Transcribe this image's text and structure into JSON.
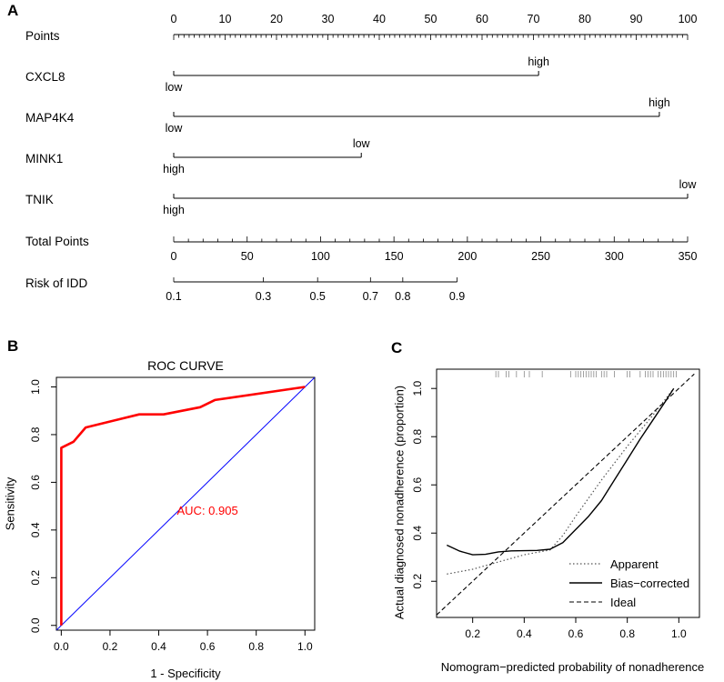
{
  "panel_labels": {
    "a": "A",
    "b": "B",
    "c": "C"
  },
  "chart_data": [
    {
      "type": "nomogram",
      "points_axis": {
        "label": "Points",
        "ticks": [
          0,
          10,
          20,
          30,
          40,
          50,
          60,
          70,
          80,
          90,
          100
        ]
      },
      "variables": [
        {
          "name": "CXCL8",
          "start_points": 0,
          "end_points": 71,
          "start_label": "low",
          "end_label": "high"
        },
        {
          "name": "MAP4K4",
          "start_points": 0,
          "end_points": 94.5,
          "start_label": "low",
          "end_label": "high"
        },
        {
          "name": "MINK1",
          "start_points": 0,
          "end_points": 36.5,
          "start_label": "high",
          "end_label": "low"
        },
        {
          "name": "TNIK",
          "start_points": 0,
          "end_points": 100,
          "start_label": "high",
          "end_label": "low"
        }
      ],
      "total_points_axis": {
        "label": "Total Points",
        "range": [
          0,
          350
        ],
        "ticks": [
          0,
          50,
          100,
          150,
          200,
          250,
          300,
          350
        ]
      },
      "risk_axis": {
        "label": "Risk of IDD",
        "ticks": [
          {
            "label": "0.1",
            "total_points": 0
          },
          {
            "label": "0.3",
            "total_points": 61
          },
          {
            "label": "0.5",
            "total_points": 98
          },
          {
            "label": "0.7",
            "total_points": 134
          },
          {
            "label": "0.8",
            "total_points": 156
          },
          {
            "label": "0.9",
            "total_points": 193
          }
        ]
      }
    },
    {
      "type": "line",
      "title": "ROC CURVE",
      "xlabel": "1 - Specificity",
      "ylabel": "Sensitivity",
      "xlim": [
        -0.02,
        1.04
      ],
      "ylim": [
        -0.02,
        1.04
      ],
      "ticks": [
        "0.0",
        "0.2",
        "0.4",
        "0.6",
        "0.8",
        "1.0"
      ],
      "series": [
        {
          "name": "ROC",
          "color": "#ff0000",
          "x": [
            0,
            0,
            0.05,
            0.1,
            0.32,
            0.42,
            0.57,
            0.63,
            1.0
          ],
          "y": [
            0,
            0.745,
            0.77,
            0.83,
            0.885,
            0.885,
            0.915,
            0.945,
            1.0
          ]
        },
        {
          "name": "Reference",
          "color": "#0000ff",
          "x": [
            -0.05,
            1.05
          ],
          "y": [
            -0.05,
            1.05
          ]
        }
      ],
      "annotation": "AUC: 0.905",
      "annotation_color": "#ff0000"
    },
    {
      "type": "line",
      "xlabel": "Nomogram−predicted probability of nonadherence",
      "ylabel": "Actual diagnosed nonadherence (proportion)",
      "xlim": [
        0.06,
        1.08
      ],
      "ylim": [
        0.05,
        1.08
      ],
      "xticks": [
        "0.2",
        "0.4",
        "0.6",
        "0.8",
        "1.0"
      ],
      "yticks": [
        "0.2",
        "0.4",
        "0.6",
        "0.8",
        "1.0"
      ],
      "series": [
        {
          "name": "Apparent",
          "style": "dotted",
          "x": [
            0.1,
            0.2,
            0.3,
            0.4,
            0.5,
            0.55,
            0.6,
            0.7,
            0.8,
            0.9,
            0.98
          ],
          "y": [
            0.23,
            0.25,
            0.28,
            0.31,
            0.33,
            0.39,
            0.47,
            0.62,
            0.76,
            0.89,
            1.0
          ]
        },
        {
          "name": "Bias−corrected",
          "style": "solid",
          "x": [
            0.1,
            0.15,
            0.2,
            0.25,
            0.3,
            0.35,
            0.4,
            0.45,
            0.5,
            0.55,
            0.6,
            0.65,
            0.7,
            0.75,
            0.8,
            0.85,
            0.9,
            0.95,
            0.98
          ],
          "y": [
            0.35,
            0.325,
            0.31,
            0.312,
            0.322,
            0.326,
            0.327,
            0.328,
            0.333,
            0.36,
            0.415,
            0.47,
            0.535,
            0.62,
            0.705,
            0.79,
            0.87,
            0.95,
            1.0
          ]
        },
        {
          "name": "Ideal",
          "style": "dashed",
          "x": [
            0.06,
            1.06
          ],
          "y": [
            0.06,
            1.06
          ]
        }
      ],
      "rug_x": [
        0.29,
        0.3,
        0.33,
        0.34,
        0.37,
        0.4,
        0.42,
        0.47,
        0.58,
        0.6,
        0.61,
        0.62,
        0.63,
        0.64,
        0.65,
        0.66,
        0.67,
        0.68,
        0.7,
        0.71,
        0.72,
        0.75,
        0.8,
        0.81,
        0.85,
        0.87,
        0.88,
        0.89,
        0.9,
        0.92,
        0.93,
        0.94,
        0.95,
        0.96,
        0.97,
        0.98,
        0.99
      ],
      "legend": [
        "Apparent",
        "Bias−corrected",
        "Ideal"
      ]
    }
  ]
}
